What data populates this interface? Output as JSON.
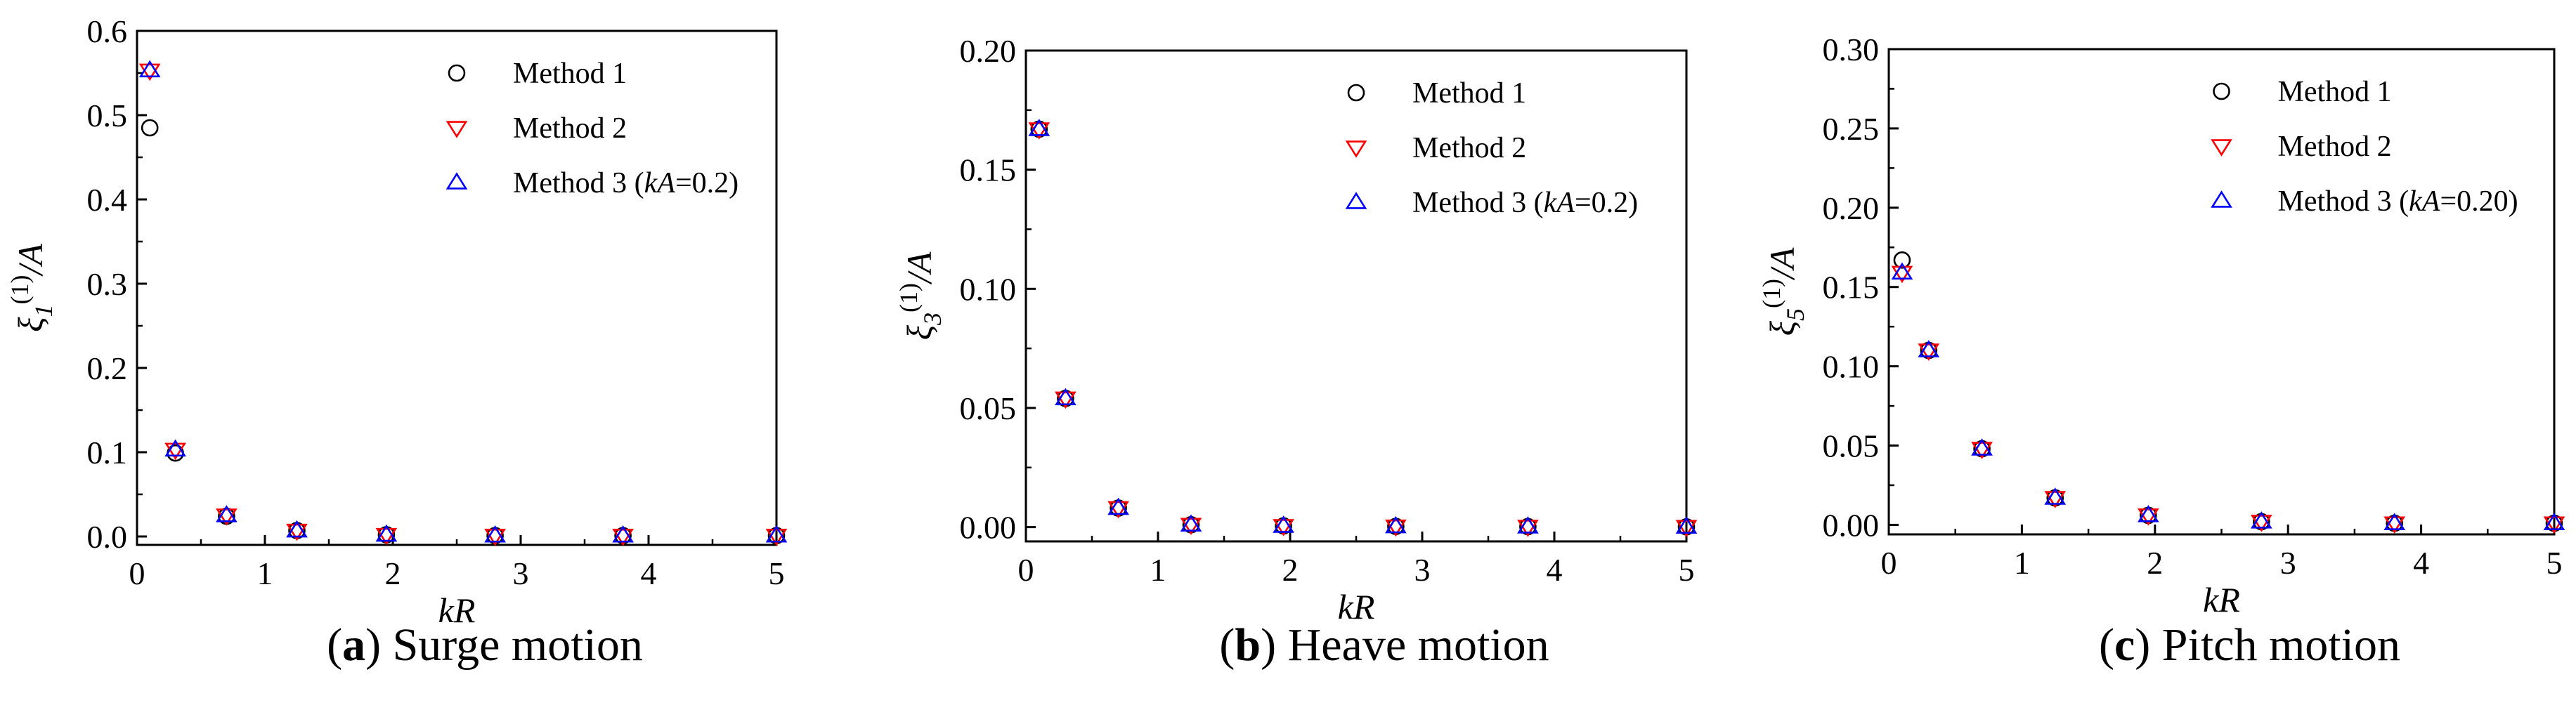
{
  "colors": {
    "method_1": "#000000",
    "method_2": "#ff0000",
    "method_3": "#0000ff",
    "axis": "#000000"
  },
  "chart_data": [
    {
      "type": "scatter",
      "caption": {
        "open": "(",
        "letter": "a",
        "close": ")",
        "text": "Surge motion"
      },
      "xlabel": "kR",
      "ylabel": {
        "base": "ξ",
        "sub": "1",
        "sup": "(1)",
        "rest": "/A"
      },
      "xlim": [
        0,
        5
      ],
      "ylim": [
        -0.01,
        0.6
      ],
      "xticks": [
        0,
        1,
        2,
        3,
        4,
        5
      ],
      "xtick_labels": [
        "0",
        "1",
        "2",
        "3",
        "4",
        "5"
      ],
      "yticks": [
        0,
        0.1,
        0.2,
        0.3,
        0.4,
        0.5,
        0.6
      ],
      "ytick_labels": [
        "0.0",
        "0.1",
        "0.2",
        "0.3",
        "0.4",
        "0.5",
        "0.6"
      ],
      "legend_position": "top-right",
      "series": [
        {
          "name": "Method 1",
          "marker": "circle",
          "x": [
            0.1,
            0.3,
            0.7,
            1.25,
            1.95,
            2.8,
            3.8,
            5.0
          ],
          "y": [
            0.485,
            0.099,
            0.024,
            0.007,
            0.002,
            0.001,
            0.001,
            0.001
          ]
        },
        {
          "name": "Method 2",
          "marker": "triangle-down",
          "x": [
            0.1,
            0.3,
            0.7,
            1.25,
            1.95,
            2.8,
            3.8,
            5.0
          ],
          "y": [
            0.553,
            0.103,
            0.025,
            0.007,
            0.002,
            0.001,
            0.001,
            0.001
          ]
        },
        {
          "name_prefix": "Method 3 (",
          "name_param": "kA",
          "name_value": "=0.2)",
          "marker": "triangle-up",
          "x": [
            0.1,
            0.3,
            0.7,
            1.25,
            1.95,
            2.8,
            3.8,
            5.0
          ],
          "y": [
            0.553,
            0.103,
            0.025,
            0.007,
            0.002,
            0.001,
            0.001,
            0.001
          ]
        }
      ]
    },
    {
      "type": "scatter",
      "caption": {
        "open": "(",
        "letter": "b",
        "close": ")",
        "text": "Heave motion"
      },
      "xlabel": "kR",
      "ylabel": {
        "base": "ξ",
        "sub": "3",
        "sup": "(1)",
        "rest": "/A"
      },
      "xlim": [
        0,
        5
      ],
      "ylim": [
        -0.006,
        0.2
      ],
      "xticks": [
        0,
        1,
        2,
        3,
        4,
        5
      ],
      "xtick_labels": [
        "0",
        "1",
        "2",
        "3",
        "4",
        "5"
      ],
      "yticks": [
        0,
        0.05,
        0.1,
        0.15,
        0.2
      ],
      "ytick_labels": [
        "0.00",
        "0.05",
        "0.10",
        "0.15",
        "0.20"
      ],
      "legend_position": "top-right",
      "series": [
        {
          "name": "Method 1",
          "marker": "circle",
          "x": [
            0.1,
            0.3,
            0.7,
            1.25,
            1.95,
            2.8,
            3.8,
            5.0
          ],
          "y": [
            0.167,
            0.054,
            0.008,
            0.001,
            0.0005,
            0.0003,
            0.0002,
            0.0001
          ]
        },
        {
          "name": "Method 2",
          "marker": "triangle-down",
          "x": [
            0.1,
            0.3,
            0.7,
            1.25,
            1.95,
            2.8,
            3.8,
            5.0
          ],
          "y": [
            0.167,
            0.054,
            0.008,
            0.001,
            0.0005,
            0.0003,
            0.0002,
            0.0001
          ]
        },
        {
          "name_prefix": "Method 3 (",
          "name_param": "kA",
          "name_value": "=0.2)",
          "marker": "triangle-up",
          "x": [
            0.1,
            0.3,
            0.7,
            1.25,
            1.95,
            2.8,
            3.8,
            5.0
          ],
          "y": [
            0.167,
            0.054,
            0.008,
            0.001,
            0.0005,
            0.0003,
            0.0002,
            0.0001
          ]
        }
      ]
    },
    {
      "type": "scatter",
      "caption": {
        "open": "(",
        "letter": "c",
        "close": ")",
        "text": "Pitch motion"
      },
      "xlabel": "kR",
      "ylabel": {
        "base": "ξ",
        "sub": "5",
        "sup": "(1)",
        "rest": "/A"
      },
      "xlim": [
        0,
        5
      ],
      "ylim": [
        -0.006,
        0.3
      ],
      "xticks": [
        0,
        1,
        2,
        3,
        4,
        5
      ],
      "xtick_labels": [
        "0",
        "1",
        "2",
        "3",
        "4",
        "5"
      ],
      "yticks": [
        0,
        0.05,
        0.1,
        0.15,
        0.2,
        0.25,
        0.3
      ],
      "ytick_labels": [
        "0.00",
        "0.05",
        "0.10",
        "0.15",
        "0.20",
        "0.25",
        "0.30"
      ],
      "legend_position": "top-right",
      "series": [
        {
          "name": "Method 1",
          "marker": "circle",
          "x": [
            0.1,
            0.3,
            0.7,
            1.25,
            1.95,
            2.8,
            3.8,
            5.0
          ],
          "y": [
            0.167,
            0.11,
            0.048,
            0.017,
            0.006,
            0.002,
            0.001,
            0.001
          ]
        },
        {
          "name": "Method 2",
          "marker": "triangle-down",
          "x": [
            0.1,
            0.3,
            0.7,
            1.25,
            1.95,
            2.8,
            3.8,
            5.0
          ],
          "y": [
            0.159,
            0.11,
            0.048,
            0.017,
            0.006,
            0.002,
            0.001,
            0.001
          ]
        },
        {
          "name_prefix": "Method 3 (",
          "name_param": "kA",
          "name_value": "=0.20)",
          "marker": "triangle-up",
          "x": [
            0.1,
            0.3,
            0.7,
            1.25,
            1.95,
            2.8,
            3.8,
            5.0
          ],
          "y": [
            0.159,
            0.11,
            0.048,
            0.017,
            0.006,
            0.002,
            0.001,
            0.001
          ]
        }
      ]
    }
  ]
}
